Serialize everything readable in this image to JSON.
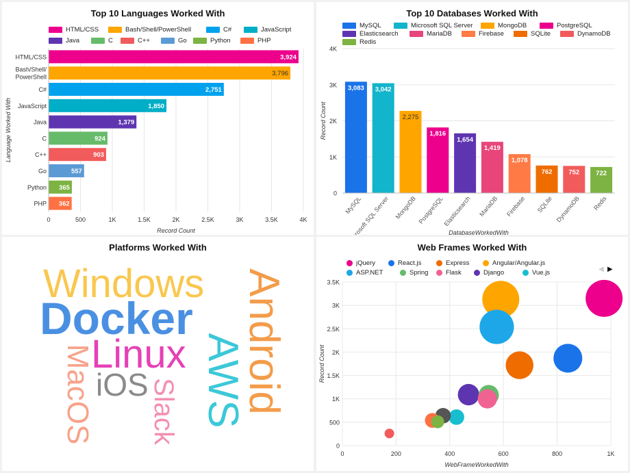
{
  "chart_data": [
    {
      "type": "bar",
      "orientation": "horizontal",
      "title": "Top 10 Languages Worked With",
      "ylabel": "Language Worked With",
      "xlabel": "Record Count",
      "categories": [
        "HTML/CSS",
        "Bash/Shell/PowerShell",
        "C#",
        "JavaScript",
        "Java",
        "C",
        "C++",
        "Go",
        "Python",
        "PHP"
      ],
      "category_labels": [
        [
          "HTML/CSS"
        ],
        [
          "Bash/Shell/",
          "PowerShell"
        ],
        [
          "C#"
        ],
        [
          "JavaScript"
        ],
        [
          "Java"
        ],
        [
          "C"
        ],
        [
          "C++"
        ],
        [
          "Go"
        ],
        [
          "Python"
        ],
        [
          "PHP"
        ]
      ],
      "values": [
        3924,
        3796,
        2751,
        1850,
        1379,
        924,
        903,
        557,
        365,
        362
      ],
      "value_labels": [
        "3,924",
        "3,796",
        "2,751",
        "1,850",
        "1,379",
        "924",
        "903",
        "557",
        "365",
        "362"
      ],
      "colors": [
        "#ec008c",
        "#ffa500",
        "#00a2ed",
        "#00aec7",
        "#5e35b1",
        "#66bb6a",
        "#f25b5b",
        "#5b9bd5",
        "#7cb342",
        "#ff7043"
      ],
      "xlim": [
        0,
        4000
      ],
      "xticks": [
        0,
        500,
        1000,
        1500,
        2000,
        2500,
        3000,
        3500,
        4000
      ],
      "xtick_labels": [
        "0",
        "500",
        "1K",
        "1.5K",
        "2K",
        "2.5K",
        "3K",
        "3.5K",
        "4K"
      ],
      "legend": "top",
      "grid": true
    },
    {
      "type": "bar",
      "title": "Top 10 Databases Worked With",
      "xlabel": "DatabaseWorkedWith",
      "ylabel": "Record Count",
      "categories": [
        "MySQL",
        "Microsoft SQL Server",
        "MongoDB",
        "PostgreSQL",
        "Elasticsearch",
        "MariaDB",
        "Firebase",
        "SQLite",
        "DynamoDB",
        "Redis"
      ],
      "values": [
        3083,
        3042,
        2275,
        1816,
        1654,
        1419,
        1078,
        762,
        752,
        722
      ],
      "value_labels": [
        "3,083",
        "3,042",
        "2,275",
        "1,816",
        "1,654",
        "1,419",
        "1,078",
        "762",
        "752",
        "722"
      ],
      "colors": [
        "#1a73e8",
        "#12b5cb",
        "#ffa500",
        "#ec008c",
        "#5e35b1",
        "#e8457a",
        "#ff7a45",
        "#ef6c00",
        "#f25b5b",
        "#7cb342"
      ],
      "ylim": [
        0,
        4000
      ],
      "yticks": [
        0,
        1000,
        2000,
        3000,
        4000
      ],
      "ytick_labels": [
        "0",
        "1K",
        "2K",
        "3K",
        "4K"
      ],
      "legend": "top",
      "grid": true
    },
    {
      "type": "wordcloud",
      "title": "Platforms Worked With",
      "words": [
        {
          "text": "Windows",
          "color": "#f9c74f"
        },
        {
          "text": "Docker",
          "color": "#4a90e2"
        },
        {
          "text": "Linux",
          "color": "#e641b6"
        },
        {
          "text": "Android",
          "color": "#f39c4a"
        },
        {
          "text": "AWS",
          "color": "#3cc8d8"
        },
        {
          "text": "MacOS",
          "color": "#f7a28b"
        },
        {
          "text": "iOS",
          "color": "#8a8a8a"
        },
        {
          "text": "Slack",
          "color": "#f48fb1"
        }
      ]
    },
    {
      "type": "scatter",
      "subtype": "bubble",
      "title": "Web Frames Worked With",
      "xlabel": "WebFrameWorkedWith",
      "ylabel": "Record Count",
      "xlim": [
        0,
        1000
      ],
      "ylim": [
        0,
        3500
      ],
      "xticks": [
        0,
        200,
        400,
        600,
        800,
        1000
      ],
      "xtick_labels": [
        "0",
        "200",
        "400",
        "600",
        "800",
        "1K"
      ],
      "yticks": [
        0,
        500,
        1000,
        1500,
        2000,
        2500,
        3000,
        3500
      ],
      "ytick_labels": [
        "0",
        "500",
        "1K",
        "1.5K",
        "2K",
        "2.5K",
        "3K",
        "3.5K"
      ],
      "legend": "top",
      "grid": true,
      "series": [
        {
          "name": "jQuery",
          "color": "#ec008c",
          "x": 975,
          "y": 3150,
          "size": 1
        },
        {
          "name": "React.js",
          "color": "#1a73e8",
          "x": 840,
          "y": 1870,
          "size": 0.78
        },
        {
          "name": "Express",
          "color": "#ef6c00",
          "x": 660,
          "y": 1720,
          "size": 0.75
        },
        {
          "name": "Angular/Angular.js",
          "color": "#ffa500",
          "x": 590,
          "y": 3130,
          "size": 1
        },
        {
          "name": "ASP.NET",
          "color": "#1ea7e8",
          "x": 575,
          "y": 2540,
          "size": 0.93
        },
        {
          "name": "Spring",
          "color": "#66bb6a",
          "x": 545,
          "y": 1080,
          "size": 0.55
        },
        {
          "name": "Flask",
          "color": "#f06292",
          "x": 540,
          "y": 1000,
          "size": 0.52
        },
        {
          "name": "Django",
          "color": "#5e35b1",
          "x": 470,
          "y": 1090,
          "size": 0.58
        },
        {
          "name": "Vue.js",
          "color": "#17becf",
          "x": 425,
          "y": 610,
          "size": 0.42
        },
        {
          "name": "",
          "color": "#555555",
          "x": 375,
          "y": 640,
          "size": 0.42
        },
        {
          "name": "",
          "color": "#7cb342",
          "x": 355,
          "y": 510,
          "size": 0.35
        },
        {
          "name": "",
          "color": "#ff7043",
          "x": 335,
          "y": 540,
          "size": 0.4
        },
        {
          "name": "",
          "color": "#f25b5b",
          "x": 175,
          "y": 260,
          "size": 0.26
        }
      ]
    }
  ],
  "pager": {
    "prev": "◀",
    "next": "▶"
  },
  "colors": {
    "background": "#f1f1f1",
    "panel": "#ffffff",
    "grid": "#e6e6e6",
    "axis_text": "#333333"
  }
}
